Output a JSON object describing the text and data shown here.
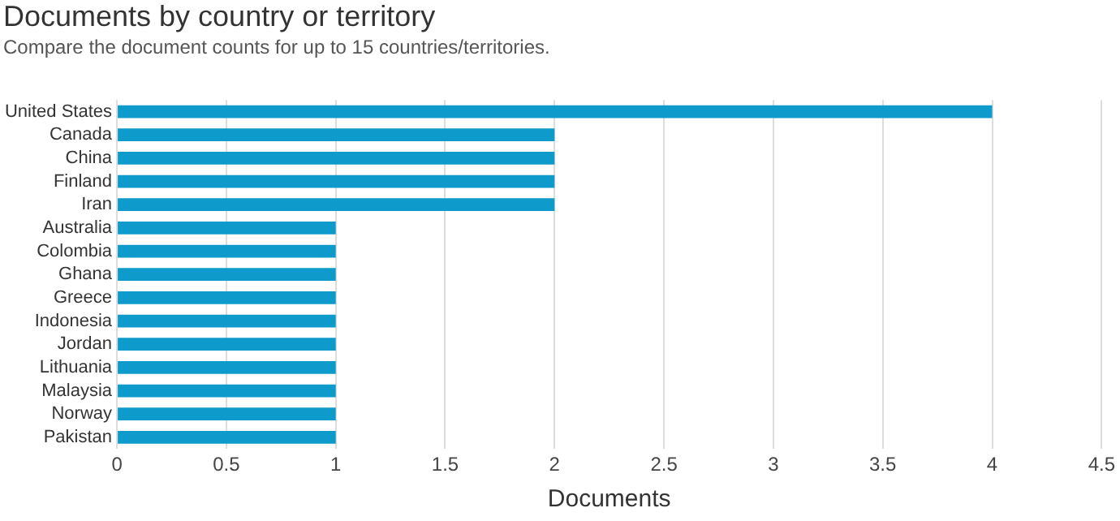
{
  "chart_data": {
    "type": "bar",
    "orientation": "horizontal",
    "title": "Documents by country or territory",
    "subtitle": "Compare the document counts for up to 15 countries/territories.",
    "xlabel": "Documents",
    "categories": [
      "United States",
      "Canada",
      "China",
      "Finland",
      "Iran",
      "Australia",
      "Colombia",
      "Ghana",
      "Greece",
      "Indonesia",
      "Jordan",
      "Lithuania",
      "Malaysia",
      "Norway",
      "Pakistan"
    ],
    "values": [
      4,
      2,
      2,
      2,
      2,
      1,
      1,
      1,
      1,
      1,
      1,
      1,
      1,
      1,
      1
    ],
    "color": "#0e9bcb",
    "xlim": [
      0,
      4.5
    ],
    "xticks": [
      0,
      0.5,
      1,
      1.5,
      2,
      2.5,
      3,
      3.5,
      4,
      4.5
    ],
    "grid": "x"
  }
}
